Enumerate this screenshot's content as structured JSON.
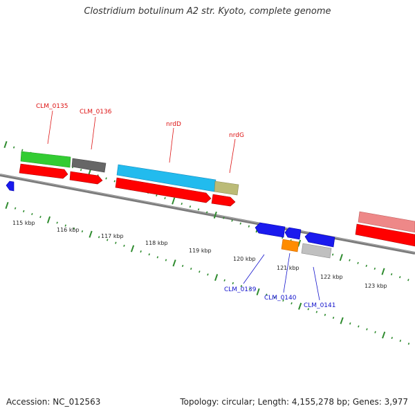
{
  "title": "Clostridium botulinum A2 str. Kyoto, complete genome",
  "footer": {
    "accession": "Accession: NC_012563",
    "summary": "Topology: circular; Length: 4,155,278 bp; Genes: 3,977"
  },
  "colors": {
    "backbone": "#808080",
    "tick": "#2e8b2e",
    "forward_label": "#dd1111",
    "reverse_label": "#1111cc",
    "cds": "#ff0000",
    "features": [
      "#33cc33",
      "#666666",
      "#22bbee",
      "#bbbb77",
      "#ee8888",
      "#1a1aee",
      "#ff8c00",
      "#c0c0c0"
    ]
  },
  "scale_labels": [
    "115 kbp",
    "116 kbp",
    "117 kbp",
    "118 kbp",
    "119 kbp",
    "120 kbp",
    "121 kbp",
    "122 kbp",
    "123 kbp"
  ],
  "gene_labels_forward": [
    "CLM_0135",
    "CLM_0136",
    "nrdD",
    "nrdG"
  ],
  "gene_labels_reverse": [
    "CLM_0139",
    "CLM_0140",
    "CLM_0141"
  ]
}
